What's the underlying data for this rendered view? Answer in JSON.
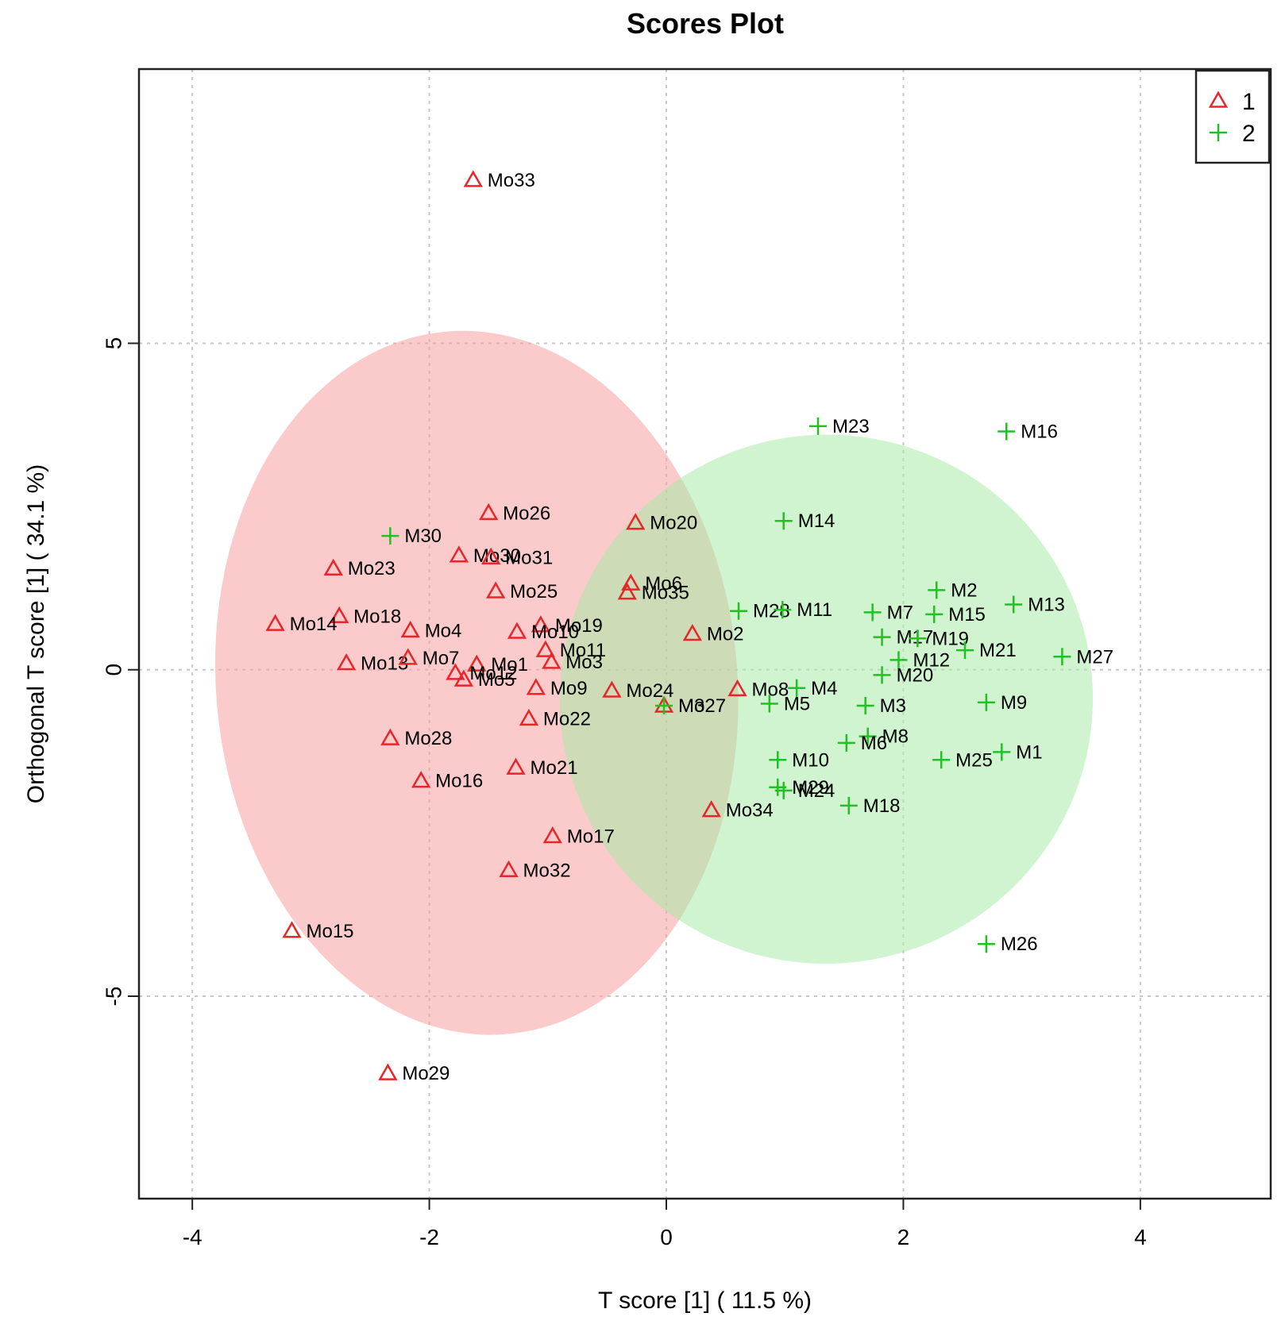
{
  "chart_data": {
    "type": "scatter",
    "title": "Scores Plot",
    "xlabel": "T score [1] ( 11.5 %)",
    "ylabel": "Orthogonal T score [1] ( 34.1 %)",
    "xlim": [
      -4.45,
      5.1
    ],
    "ylim": [
      -8.1,
      9.2
    ],
    "xticks": [
      -4,
      -2,
      0,
      2,
      4
    ],
    "yticks": [
      -5,
      0,
      5
    ],
    "grid": true,
    "legend_position": "top-right",
    "colors": {
      "1": "#e8262a",
      "2": "#22c022"
    },
    "ellipse_colors": {
      "1": "#f7a0a0",
      "2": "#a8eba8"
    },
    "ellipses": [
      {
        "group": "1",
        "center": [
          -1.6,
          -0.2
        ],
        "rx": 2.2,
        "ry": 5.4,
        "angle": -5
      },
      {
        "group": "2",
        "center": [
          1.35,
          -0.45
        ],
        "rx": 2.25,
        "ry": 4.05,
        "angle": -10
      }
    ],
    "series": [
      {
        "name": "1",
        "marker": "triangle",
        "points": [
          {
            "label": "Mo33",
            "x": -1.63,
            "y": 7.5
          },
          {
            "label": "Mo26",
            "x": -1.5,
            "y": 2.4
          },
          {
            "label": "Mo20",
            "x": -0.26,
            "y": 2.25
          },
          {
            "label": "Mo30",
            "x": -1.75,
            "y": 1.75
          },
          {
            "label": "Mo31",
            "x": -1.48,
            "y": 1.72
          },
          {
            "label": "Mo23",
            "x": -2.81,
            "y": 1.55
          },
          {
            "label": "Mo25",
            "x": -1.44,
            "y": 1.2
          },
          {
            "label": "Mo6",
            "x": -0.3,
            "y": 1.32
          },
          {
            "label": "Mo35",
            "x": -0.33,
            "y": 1.18
          },
          {
            "label": "Mo18",
            "x": -2.76,
            "y": 0.82
          },
          {
            "label": "Mo14",
            "x": -3.3,
            "y": 0.7
          },
          {
            "label": "Mo4",
            "x": -2.16,
            "y": 0.6
          },
          {
            "label": "Mo19",
            "x": -1.06,
            "y": 0.68
          },
          {
            "label": "Mo10",
            "x": -1.26,
            "y": 0.58
          },
          {
            "label": "Mo2",
            "x": 0.22,
            "y": 0.55
          },
          {
            "label": "Mo11",
            "x": -1.02,
            "y": 0.3
          },
          {
            "label": "Mo13",
            "x": -2.7,
            "y": 0.1
          },
          {
            "label": "Mo7",
            "x": -2.18,
            "y": 0.18
          },
          {
            "label": "Mo1",
            "x": -1.6,
            "y": 0.08
          },
          {
            "label": "Mo3",
            "x": -0.97,
            "y": 0.12
          },
          {
            "label": "Mo12",
            "x": -1.78,
            "y": -0.05
          },
          {
            "label": "Mo5",
            "x": -1.71,
            "y": -0.15
          },
          {
            "label": "Mo9",
            "x": -1.1,
            "y": -0.28
          },
          {
            "label": "Mo24",
            "x": -0.46,
            "y": -0.32
          },
          {
            "label": "Mo8",
            "x": 0.6,
            "y": -0.3
          },
          {
            "label": "Mo27",
            "x": -0.02,
            "y": -0.55
          },
          {
            "label": "Mo22",
            "x": -1.16,
            "y": -0.75
          },
          {
            "label": "Mo28",
            "x": -2.33,
            "y": -1.05
          },
          {
            "label": "Mo21",
            "x": -1.27,
            "y": -1.5
          },
          {
            "label": "Mo16",
            "x": -2.07,
            "y": -1.7
          },
          {
            "label": "Mo34",
            "x": 0.38,
            "y": -2.15
          },
          {
            "label": "Mo17",
            "x": -0.96,
            "y": -2.55
          },
          {
            "label": "Mo32",
            "x": -1.33,
            "y": -3.07
          },
          {
            "label": "Mo15",
            "x": -3.16,
            "y": -4.0
          },
          {
            "label": "Mo29",
            "x": -2.35,
            "y": -6.18
          }
        ]
      },
      {
        "name": "2",
        "marker": "plus",
        "points": [
          {
            "label": "M23",
            "x": 1.28,
            "y": 3.73
          },
          {
            "label": "M16",
            "x": 2.87,
            "y": 3.65
          },
          {
            "label": "M14",
            "x": 0.99,
            "y": 2.28
          },
          {
            "label": "M30",
            "x": -2.33,
            "y": 2.05
          },
          {
            "label": "M2",
            "x": 2.28,
            "y": 1.22
          },
          {
            "label": "M13",
            "x": 2.93,
            "y": 1.0
          },
          {
            "label": "M28",
            "x": 0.61,
            "y": 0.9
          },
          {
            "label": "M11",
            "x": 0.98,
            "y": 0.92
          },
          {
            "label": "M7",
            "x": 1.74,
            "y": 0.88
          },
          {
            "label": "M15",
            "x": 2.26,
            "y": 0.85
          },
          {
            "label": "M17",
            "x": 1.82,
            "y": 0.5
          },
          {
            "label": "M19",
            "x": 2.12,
            "y": 0.48
          },
          {
            "label": "M21",
            "x": 2.52,
            "y": 0.3
          },
          {
            "label": "M27",
            "x": 3.34,
            "y": 0.2
          },
          {
            "label": "M12",
            "x": 1.96,
            "y": 0.15
          },
          {
            "label": "M20",
            "x": 1.82,
            "y": -0.08
          },
          {
            "label": "M3",
            "x": -0.02,
            "y": -0.55
          },
          {
            "label": "M5",
            "x": 0.87,
            "y": -0.52
          },
          {
            "label": "M4",
            "x": 1.1,
            "y": -0.28
          },
          {
            "label": "M9",
            "x": 2.7,
            "y": -0.5
          },
          {
            "label": "M3",
            "x": 1.68,
            "y": -0.55
          },
          {
            "label": "M8",
            "x": 1.7,
            "y": -1.02
          },
          {
            "label": "M6",
            "x": 1.52,
            "y": -1.12
          },
          {
            "label": "M10",
            "x": 0.94,
            "y": -1.38
          },
          {
            "label": "M25",
            "x": 2.32,
            "y": -1.38
          },
          {
            "label": "M1",
            "x": 2.83,
            "y": -1.26
          },
          {
            "label": "M29",
            "x": 0.94,
            "y": -1.8
          },
          {
            "label": "M24",
            "x": 0.99,
            "y": -1.85
          },
          {
            "label": "M18",
            "x": 1.54,
            "y": -2.08
          },
          {
            "label": "M26",
            "x": 2.7,
            "y": -4.2
          }
        ]
      }
    ]
  }
}
